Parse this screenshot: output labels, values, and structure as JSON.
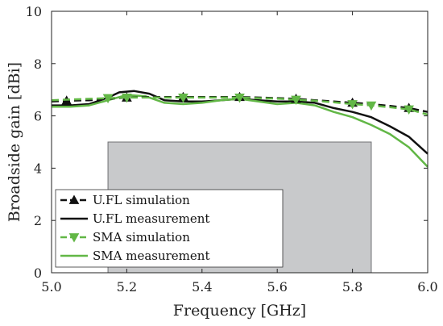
{
  "chart_data": {
    "type": "line",
    "xlabel": "Frequency [GHz]",
    "ylabel": "Broadside gain [dBi]",
    "xlim": [
      5.0,
      6.0
    ],
    "ylim": [
      0,
      10
    ],
    "xticks": [
      "5.0",
      "5.2",
      "5.4",
      "5.6",
      "5.8",
      "6.0"
    ],
    "yticks": [
      "0",
      "2",
      "4",
      "6",
      "8",
      "10"
    ],
    "xtick_values": [
      5.0,
      5.2,
      5.4,
      5.6,
      5.8,
      6.0
    ],
    "ytick_values": [
      0,
      2,
      4,
      6,
      8,
      10
    ],
    "grid": false,
    "legend_position": "bottom-left",
    "shaded_band": {
      "x": [
        5.15,
        5.85
      ],
      "y": [
        0,
        5
      ],
      "color": "#c8c9cb"
    },
    "series": [
      {
        "name": "U.FL simulation",
        "color": "#111111",
        "style": "dashed",
        "marker": "triangle-up",
        "x": [
          5.0,
          5.04,
          5.1,
          5.15,
          5.2,
          5.25,
          5.3,
          5.35,
          5.4,
          5.45,
          5.5,
          5.55,
          5.6,
          5.65,
          5.7,
          5.75,
          5.8,
          5.85,
          5.9,
          5.95,
          6.0
        ],
        "y": [
          6.55,
          6.58,
          6.6,
          6.65,
          6.7,
          6.72,
          6.72,
          6.72,
          6.72,
          6.72,
          6.72,
          6.7,
          6.68,
          6.65,
          6.6,
          6.55,
          6.5,
          6.45,
          6.38,
          6.3,
          6.15
        ],
        "marker_x": [
          5.04,
          5.2,
          5.35,
          5.5,
          5.65,
          5.8,
          5.95
        ]
      },
      {
        "name": "U.FL measurement",
        "color": "#111111",
        "style": "solid",
        "marker": "none",
        "x": [
          5.0,
          5.05,
          5.1,
          5.15,
          5.18,
          5.22,
          5.26,
          5.3,
          5.35,
          5.4,
          5.45,
          5.5,
          5.55,
          5.6,
          5.65,
          5.7,
          5.75,
          5.8,
          5.85,
          5.9,
          5.95,
          6.0
        ],
        "y": [
          6.4,
          6.4,
          6.45,
          6.7,
          6.9,
          6.95,
          6.85,
          6.6,
          6.55,
          6.55,
          6.6,
          6.65,
          6.6,
          6.55,
          6.55,
          6.5,
          6.3,
          6.15,
          5.95,
          5.6,
          5.2,
          4.55
        ]
      },
      {
        "name": "SMA simulation",
        "color": "#62b746",
        "style": "dashed",
        "marker": "triangle-down",
        "x": [
          5.0,
          5.04,
          5.1,
          5.15,
          5.2,
          5.25,
          5.3,
          5.35,
          5.4,
          5.45,
          5.5,
          5.55,
          5.6,
          5.65,
          5.7,
          5.75,
          5.8,
          5.85,
          5.9,
          5.95,
          6.0
        ],
        "y": [
          6.6,
          6.62,
          6.65,
          6.68,
          6.7,
          6.7,
          6.7,
          6.7,
          6.7,
          6.7,
          6.7,
          6.68,
          6.66,
          6.62,
          6.58,
          6.52,
          6.45,
          6.4,
          6.33,
          6.25,
          6.05
        ],
        "marker_x": [
          5.15,
          5.2,
          5.35,
          5.5,
          5.65,
          5.8,
          5.85,
          5.95
        ]
      },
      {
        "name": "SMA measurement",
        "color": "#62b746",
        "style": "solid",
        "marker": "none",
        "x": [
          5.0,
          5.05,
          5.1,
          5.15,
          5.2,
          5.25,
          5.3,
          5.35,
          5.4,
          5.45,
          5.5,
          5.55,
          5.6,
          5.65,
          5.7,
          5.75,
          5.8,
          5.85,
          5.9,
          5.95,
          6.0
        ],
        "y": [
          6.35,
          6.35,
          6.4,
          6.6,
          6.8,
          6.75,
          6.5,
          6.45,
          6.5,
          6.6,
          6.65,
          6.55,
          6.45,
          6.5,
          6.4,
          6.15,
          5.95,
          5.65,
          5.3,
          4.8,
          4.05
        ]
      }
    ]
  }
}
